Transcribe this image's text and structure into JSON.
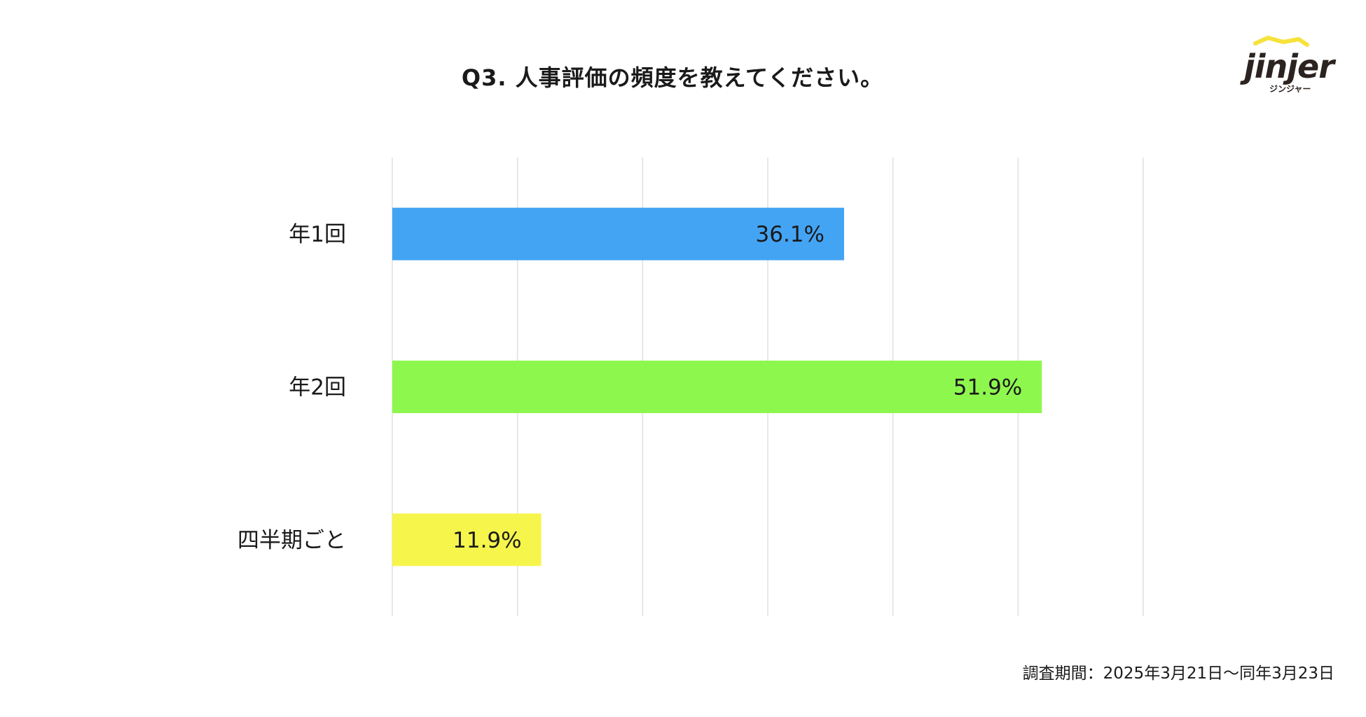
{
  "title": "Q3. 人事評価の頻度を教えてください。",
  "logo": {
    "brand": "jinjer",
    "subtitle": "ジンジャー"
  },
  "footnote": "調査期間：2025年3月21日〜同年3月23日",
  "chart_data": {
    "type": "bar",
    "orientation": "horizontal",
    "categories": [
      "年1回",
      "年2回",
      "四半期ごと"
    ],
    "values": [
      36.1,
      51.9,
      11.9
    ],
    "value_labels": [
      "36.1%",
      "51.9%",
      "11.9%"
    ],
    "colors": [
      "#44a4f4",
      "#8ef74e",
      "#f6f54c"
    ],
    "xlim": [
      0,
      60
    ],
    "grid": true,
    "gridline_count": 7
  }
}
